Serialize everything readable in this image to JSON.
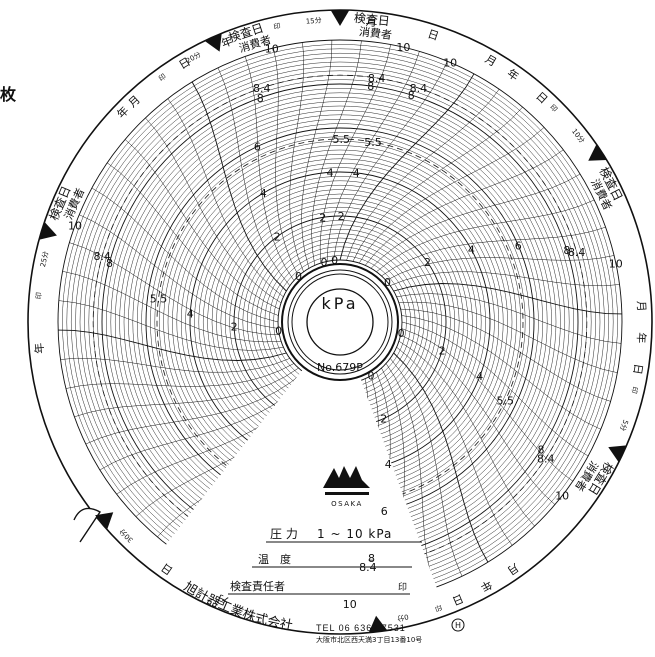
{
  "corner_mark": "枚",
  "center": {
    "unit": "kPa",
    "model": "No.679P"
  },
  "scale": {
    "labels": [
      "0",
      "2",
      "4",
      "5.5",
      "6",
      "8",
      "8.4",
      "10"
    ]
  },
  "segments": [
    {
      "time": "15分",
      "inspection": "検査日",
      "consumer": "消費者",
      "year": "年",
      "month": "月",
      "day": "日",
      "seal": "印"
    },
    {
      "time": "10分",
      "inspection": "検査日",
      "consumer": "消費者",
      "year": "年",
      "month": "月",
      "day": "日",
      "seal": "印"
    },
    {
      "time": "5分",
      "inspection": "検査日",
      "consumer": "消費者",
      "year": "年",
      "month": "月",
      "day": "日",
      "seal": "印"
    },
    {
      "time": "0分",
      "inspection": "",
      "consumer": "",
      "year": "年",
      "month": "月",
      "day": "日",
      "seal": "印"
    },
    {
      "time": "30分",
      "inspection": "",
      "consumer": "",
      "year": "",
      "month": "",
      "day": "",
      "seal": ""
    },
    {
      "time": "25分",
      "inspection": "検査日",
      "consumer": "消費者",
      "year": "年",
      "month": "月",
      "day": "日",
      "seal": "印"
    },
    {
      "time": "20分",
      "inspection": "検査日",
      "consumer": "消費者",
      "year": "年",
      "month": "月",
      "day": "日",
      "seal": "印"
    }
  ],
  "brand": {
    "logo_text": "OSAKA"
  },
  "info": {
    "pressure_label": "圧 力",
    "pressure_range": "1 ~ 10 kPa",
    "temp_label": "温　度",
    "temp_value": "–",
    "inspector_label": "検査責任者",
    "inspector_seal": "印"
  },
  "footer": {
    "company": "旭計器工業株式会社",
    "tel": "TEL 06 6362 7531",
    "address": "大阪市北区西天満3丁目13番10号",
    "mark": "H"
  }
}
